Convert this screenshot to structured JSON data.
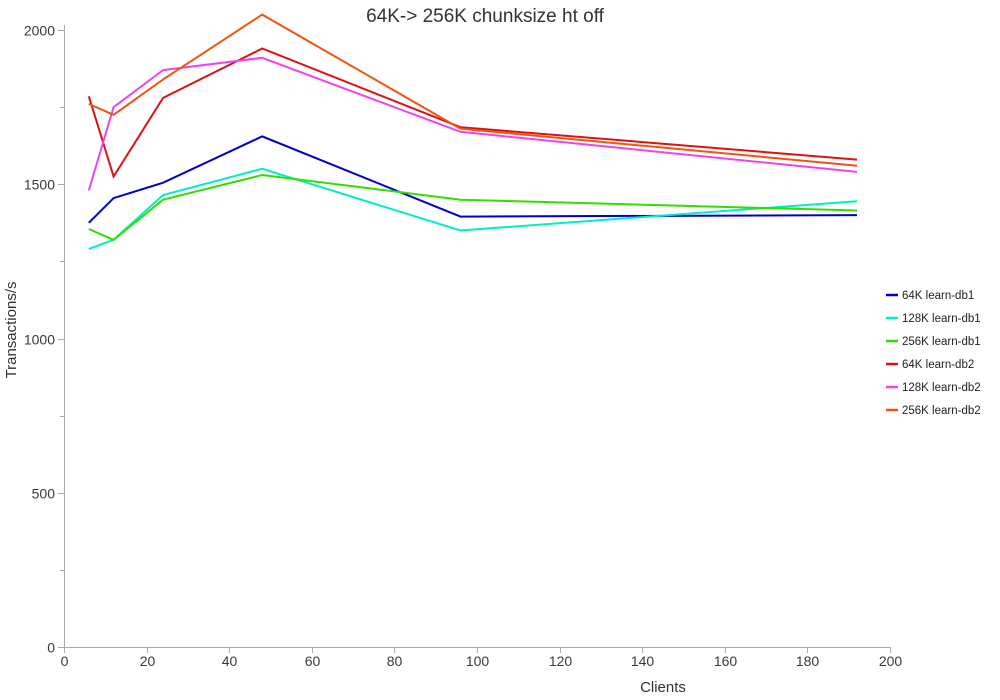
{
  "background": "#ffffff",
  "axis_color": "#aaaaaa",
  "chart_data": {
    "type": "line",
    "title": "64K-> 256K chunksize ht off",
    "xlabel": "Clients",
    "ylabel": "Transactions/s",
    "x": [
      6,
      12,
      24,
      48,
      96,
      192
    ],
    "xlim": [
      0,
      200
    ],
    "ylim": [
      0,
      2000
    ],
    "x_ticks": [
      0,
      20,
      40,
      60,
      80,
      100,
      120,
      140,
      160,
      180,
      200
    ],
    "y_ticks": [
      0,
      500,
      1000,
      1500,
      2000
    ],
    "y_minor_step": 250,
    "grid": false,
    "legend_position": "right",
    "series": [
      {
        "name": "64K learn-db1",
        "color": "#0000cc",
        "values": [
          1375,
          1455,
          1505,
          1655,
          1395,
          1400
        ]
      },
      {
        "name": "128K learn-db1",
        "color": "#00eec8",
        "values": [
          1290,
          1320,
          1465,
          1550,
          1350,
          1445
        ]
      },
      {
        "name": "256K learn-db1",
        "color": "#33dd00",
        "values": [
          1355,
          1320,
          1450,
          1530,
          1450,
          1415
        ]
      },
      {
        "name": "64K learn-db2",
        "color": "#dd1111",
        "values": [
          1785,
          1525,
          1780,
          1940,
          1685,
          1580
        ]
      },
      {
        "name": "128K learn-db2",
        "color": "#ee44ee",
        "values": [
          1480,
          1750,
          1870,
          1910,
          1670,
          1540
        ]
      },
      {
        "name": "256K learn-db2",
        "color": "#ee5511",
        "values": [
          1760,
          1725,
          1840,
          2050,
          1680,
          1560
        ]
      }
    ]
  }
}
